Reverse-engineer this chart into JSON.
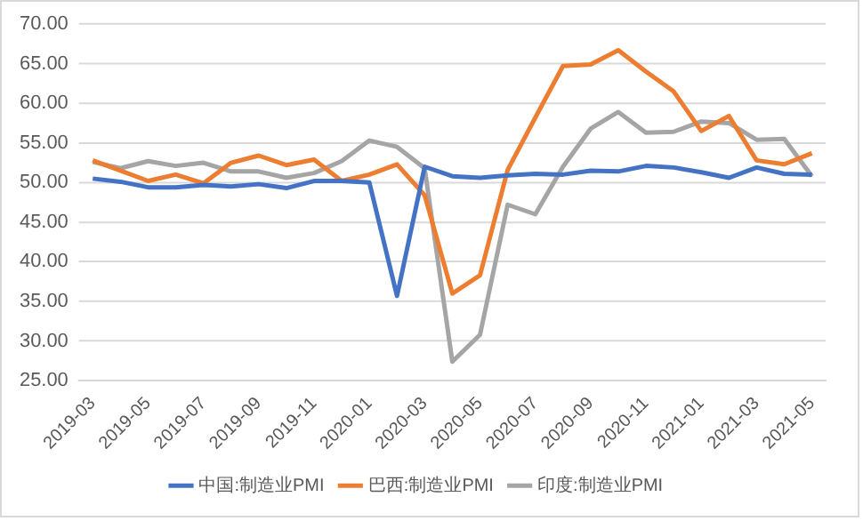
{
  "chart_data": {
    "type": "line",
    "categories": [
      "2019-03",
      null,
      "2019-05",
      null,
      "2019-07",
      null,
      "2019-09",
      null,
      "2019-11",
      null,
      "2020-01",
      null,
      "2020-03",
      null,
      "2020-05",
      null,
      "2020-07",
      null,
      "2020-09",
      null,
      "2020-11",
      null,
      "2021-01",
      null,
      "2021-03",
      null,
      "2021-05"
    ],
    "series": [
      {
        "name": "中国:制造业PMI",
        "color": "#4472c4",
        "values": [
          50.5,
          50.1,
          49.4,
          49.4,
          49.7,
          49.5,
          49.8,
          49.3,
          50.2,
          50.2,
          50.0,
          35.7,
          52.0,
          50.8,
          50.6,
          50.9,
          51.1,
          51.0,
          51.5,
          51.4,
          52.1,
          51.9,
          51.3,
          50.6,
          51.9,
          51.1,
          51.0
        ]
      },
      {
        "name": "巴西:制造业PMI",
        "color": "#ed7d31",
        "values": [
          52.8,
          51.5,
          50.2,
          51.0,
          49.9,
          52.5,
          53.4,
          52.2,
          52.9,
          50.2,
          51.0,
          52.3,
          48.4,
          36.0,
          38.3,
          51.6,
          58.2,
          64.7,
          64.9,
          66.7,
          64.0,
          61.5,
          56.5,
          58.4,
          52.8,
          52.3,
          53.7
        ]
      },
      {
        "name": "印度:制造业PMI",
        "color": "#a5a5a5",
        "values": [
          52.6,
          51.8,
          52.7,
          52.1,
          52.5,
          51.4,
          51.4,
          50.6,
          51.2,
          52.7,
          55.3,
          54.5,
          51.8,
          27.4,
          30.8,
          47.2,
          46.0,
          52.0,
          56.8,
          58.9,
          56.3,
          56.4,
          57.7,
          57.5,
          55.4,
          55.5,
          50.8
        ]
      }
    ],
    "ylim": [
      25,
      70
    ],
    "yticks": [
      {
        "value": 25,
        "label": "25.00"
      },
      {
        "value": 30,
        "label": "30.00"
      },
      {
        "value": 35,
        "label": "35.00"
      },
      {
        "value": 40,
        "label": "40.00"
      },
      {
        "value": 45,
        "label": "45.00"
      },
      {
        "value": 50,
        "label": "50.00"
      },
      {
        "value": 55,
        "label": "55.00"
      },
      {
        "value": 60,
        "label": "60.00"
      },
      {
        "value": 65,
        "label": "65.00"
      },
      {
        "value": 70,
        "label": "70.00"
      }
    ],
    "grid": "y",
    "legend": "bottom",
    "marker": "none",
    "line_style": "solid"
  }
}
